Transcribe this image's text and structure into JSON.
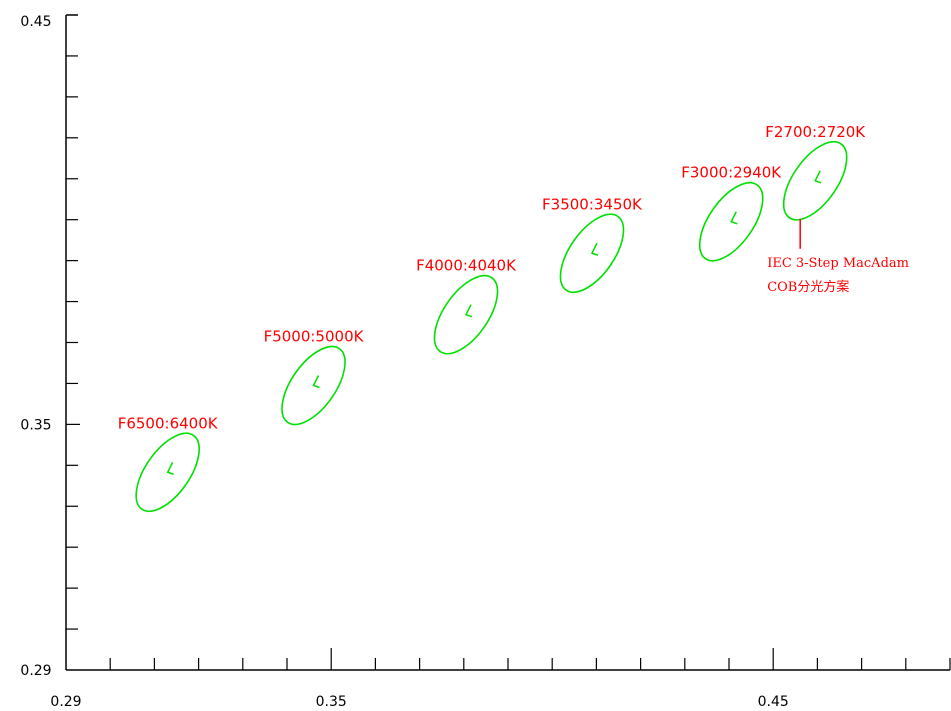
{
  "chart_data": {
    "type": "scatter",
    "title": "",
    "xlabel": "",
    "ylabel": "",
    "xlim": [
      0.29,
      0.49
    ],
    "ylim": [
      0.29,
      0.45
    ],
    "x_tick_labels": [
      {
        "value": 0.29,
        "label": "0.29"
      },
      {
        "value": 0.35,
        "label": "0.35"
      },
      {
        "value": 0.45,
        "label": "0.45"
      }
    ],
    "y_tick_labels": [
      {
        "value": 0.45,
        "label": "0.45"
      },
      {
        "value": 0.35,
        "label": "0.35"
      },
      {
        "value": 0.29,
        "label": "0.29"
      }
    ],
    "x_minor_step": 0.01,
    "y_minor_step": 0.01,
    "grid": false,
    "colors": {
      "ellipse": "#00e000",
      "label": "#ff0000",
      "axis": "#000000"
    },
    "points": [
      {
        "label": "F6500:6400K",
        "x": 0.313,
        "y": 0.3383
      },
      {
        "label": "F5000:5000K",
        "x": 0.346,
        "y": 0.3595
      },
      {
        "label": "F4000:4040K",
        "x": 0.3805,
        "y": 0.3768
      },
      {
        "label": "F3500:3450K",
        "x": 0.409,
        "y": 0.3918
      },
      {
        "label": "F3000:2940K",
        "x": 0.4405,
        "y": 0.3995
      },
      {
        "label": "F2700:2720K",
        "x": 0.4595,
        "y": 0.4095
      }
    ],
    "annotation": {
      "lines": [
        "IEC 3-Step MacAdam",
        "COB分光方案"
      ]
    }
  }
}
